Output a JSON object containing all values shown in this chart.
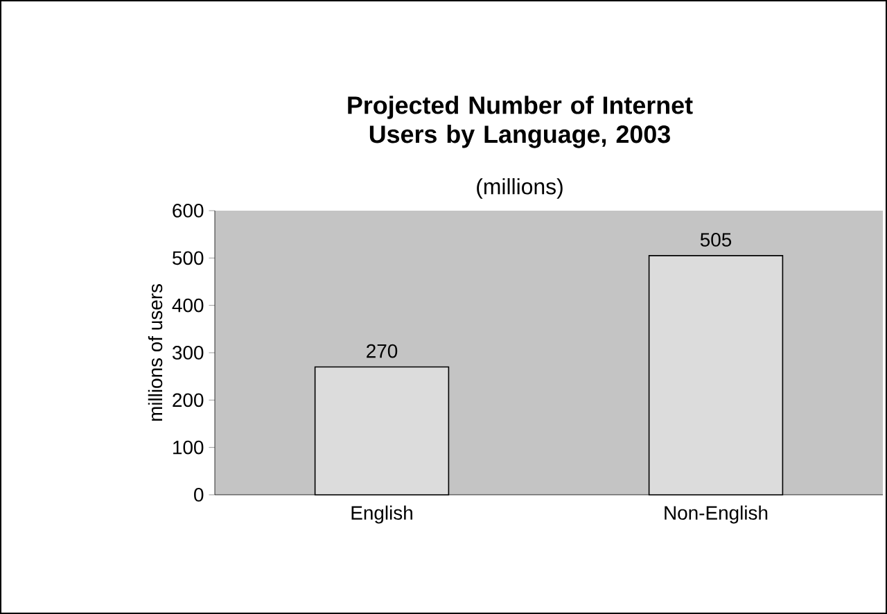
{
  "chart_data": {
    "type": "bar",
    "title": "Projected Number of Internet Users by Language, 2003",
    "subtitle": "(millions)",
    "ylabel": "millions of users",
    "categories": [
      "English",
      "Non-English"
    ],
    "values": [
      270,
      505
    ],
    "color": "#dcdcdc",
    "ylim": [
      0,
      600
    ],
    "yticks": [
      0,
      100,
      200,
      300,
      400,
      500,
      600
    ],
    "data_labels": true
  }
}
